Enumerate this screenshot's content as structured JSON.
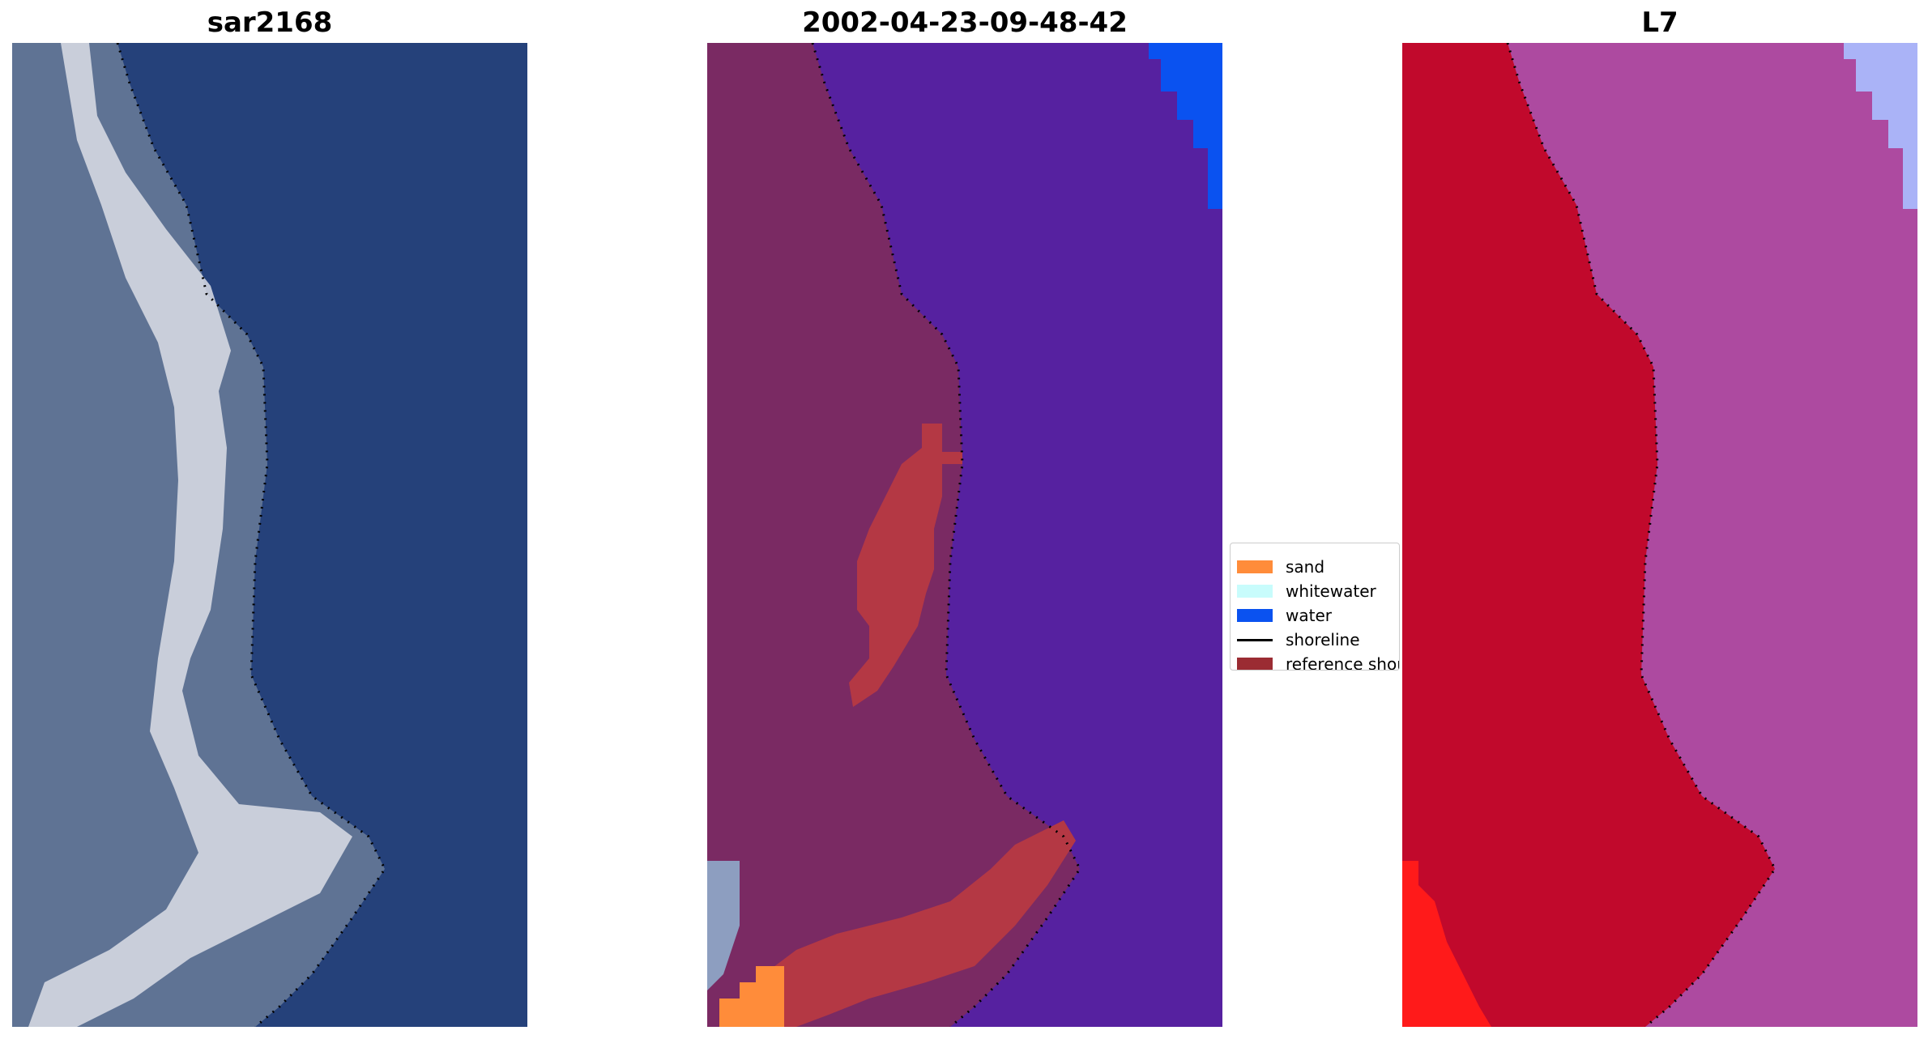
{
  "panels": [
    {
      "title": "sar2168"
    },
    {
      "title": "2002-04-23-09-48-42"
    },
    {
      "title": "L7"
    }
  ],
  "legend": {
    "items": [
      {
        "label": "sand",
        "color": "#ff8c3a",
        "kind": "patch"
      },
      {
        "label": "whitewater",
        "color": "#c8fcfc",
        "kind": "patch"
      },
      {
        "label": "water",
        "color": "#0a52f0",
        "kind": "patch"
      },
      {
        "label": "shoreline",
        "color": "#000000",
        "kind": "line"
      },
      {
        "label": "reference shoreline buffer",
        "color": "#9b2c33",
        "kind": "patch"
      }
    ]
  },
  "colors": {
    "rgb_water": "#25417a",
    "rgb_land": "#5f7394",
    "rgb_whitewater": "#dcdee6",
    "class_water": "#5621a0",
    "class_land": "#7a2a63",
    "class_buffer": "#b43844",
    "class_sand": "#ff8c3a",
    "class_water_patch": "#0a52f0",
    "ndwi_land": "#c1092c",
    "ndwi_water": "#ad4aa0",
    "ndwi_high": "#aab3f7",
    "ndwi_low": "#ff1a1a"
  }
}
